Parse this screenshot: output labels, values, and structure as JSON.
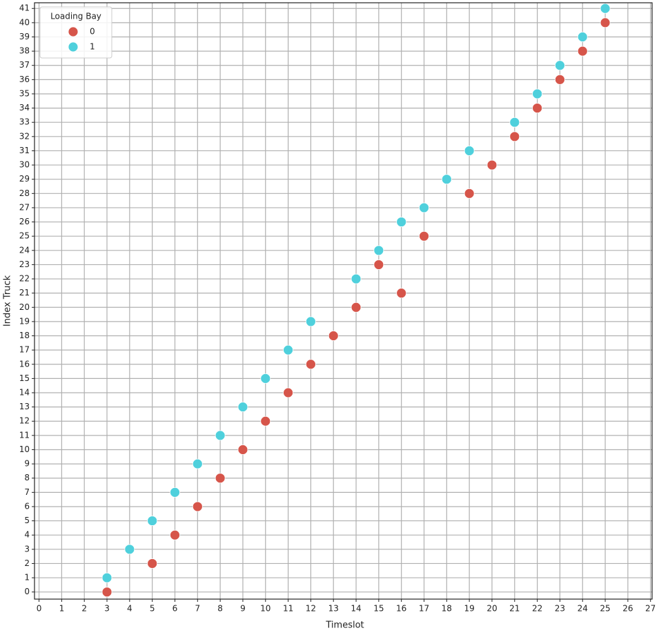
{
  "chart_data": {
    "type": "scatter",
    "xlabel": "Timeslot",
    "ylabel": "Index Truck",
    "legend_title": "Loading Bay",
    "legend_position": "upper left",
    "grid": true,
    "xlim": [
      -0.2,
      27.07
    ],
    "ylim": [
      -0.5,
      41.4
    ],
    "xticks": [
      0,
      1,
      2,
      3,
      4,
      5,
      6,
      7,
      8,
      9,
      10,
      11,
      12,
      13,
      14,
      15,
      16,
      17,
      18,
      19,
      20,
      21,
      22,
      23,
      24,
      25,
      26,
      27
    ],
    "yticks": [
      0,
      1,
      2,
      3,
      4,
      5,
      6,
      7,
      8,
      9,
      10,
      11,
      12,
      13,
      14,
      15,
      16,
      17,
      18,
      19,
      20,
      21,
      22,
      23,
      24,
      25,
      26,
      27,
      28,
      29,
      30,
      31,
      32,
      33,
      34,
      35,
      36,
      37,
      38,
      39,
      40,
      41
    ],
    "series": [
      {
        "name": "0",
        "color": "#d6554a",
        "x": [
          3,
          5,
          6,
          7,
          8,
          9,
          10,
          11,
          12,
          13,
          14,
          16,
          15,
          17,
          19,
          20,
          21,
          22,
          23,
          24,
          25
        ],
        "values": [
          0,
          2,
          4,
          6,
          8,
          10,
          12,
          14,
          16,
          18,
          20,
          21,
          23,
          25,
          28,
          30,
          32,
          34,
          36,
          38,
          40
        ]
      },
      {
        "name": "1",
        "color": "#4fd0dc",
        "x": [
          3,
          4,
          5,
          6,
          7,
          8,
          9,
          10,
          11,
          12,
          14,
          15,
          16,
          17,
          18,
          19,
          21,
          22,
          23,
          24,
          25
        ],
        "values": [
          1,
          3,
          5,
          7,
          9,
          11,
          13,
          15,
          17,
          19,
          22,
          24,
          26,
          27,
          29,
          31,
          33,
          35,
          37,
          39,
          41
        ]
      }
    ]
  }
}
